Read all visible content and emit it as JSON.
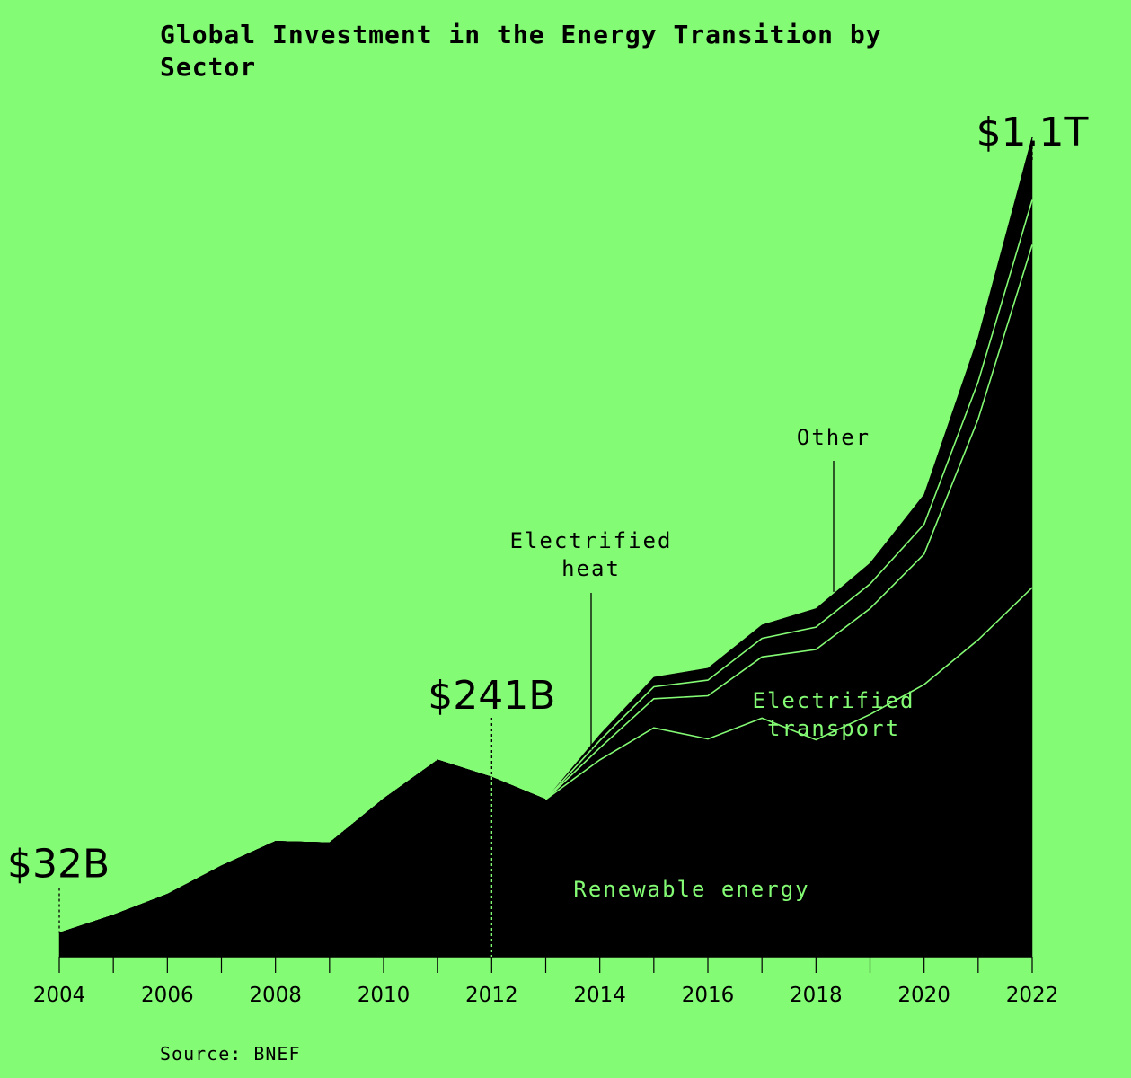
{
  "chart_data": {
    "type": "area",
    "title_lines": [
      "Global Investment in the Energy Transition by",
      "Sector"
    ],
    "x": [
      2004,
      2005,
      2006,
      2007,
      2008,
      2009,
      2010,
      2011,
      2012,
      2013,
      2014,
      2015,
      2016,
      2017,
      2018,
      2019,
      2020,
      2021,
      2022
    ],
    "x_tick_labels": [
      "2004",
      "2006",
      "2008",
      "2010",
      "2012",
      "2014",
      "2016",
      "2018",
      "2020",
      "2022"
    ],
    "x_tick_values": [
      2004,
      2006,
      2008,
      2010,
      2012,
      2014,
      2016,
      2018,
      2020,
      2022
    ],
    "stacked": true,
    "series": [
      {
        "name": "Renewable energy",
        "values": [
          32,
          56,
          84,
          122,
          155,
          153,
          212,
          264,
          241,
          211,
          264,
          307,
          292,
          320,
          291,
          325,
          365,
          425,
          495
        ]
      },
      {
        "name": "Electrified transport",
        "values": [
          0,
          0,
          0,
          0,
          0,
          0,
          0,
          0,
          0,
          0,
          16,
          39,
          58,
          82,
          121,
          142,
          175,
          296,
          460
        ]
      },
      {
        "name": "Electrified heat",
        "values": [
          0,
          0,
          0,
          0,
          0,
          0,
          0,
          0,
          0,
          0,
          10,
          16,
          21,
          25,
          30,
          33,
          40,
          50,
          60
        ]
      },
      {
        "name": "Other",
        "values": [
          0,
          0,
          0,
          0,
          0,
          0,
          0,
          0,
          0,
          0,
          8,
          13,
          16,
          18,
          25,
          28,
          40,
          60,
          85
        ]
      }
    ],
    "ylim": [
      0,
      1100
    ],
    "y_axis": "hidden",
    "grid": false,
    "legend": "none",
    "annotations": [
      {
        "text": "$32B",
        "year": 2004,
        "value": 32
      },
      {
        "text": "$241B",
        "year": 2012,
        "value": 241
      },
      {
        "text": "$1.1T",
        "year": 2022,
        "value": 1100
      }
    ],
    "series_labels": [
      {
        "lines": [
          "Renewable energy"
        ]
      },
      {
        "lines": [
          "Electrified",
          "transport"
        ]
      },
      {
        "lines": [
          "Electrified",
          "heat"
        ]
      },
      {
        "lines": [
          "Other"
        ]
      }
    ],
    "source": "Source: BNEF"
  },
  "colors": {
    "background": "#84fb74",
    "area": "#000000",
    "divider": "#84fb74"
  }
}
